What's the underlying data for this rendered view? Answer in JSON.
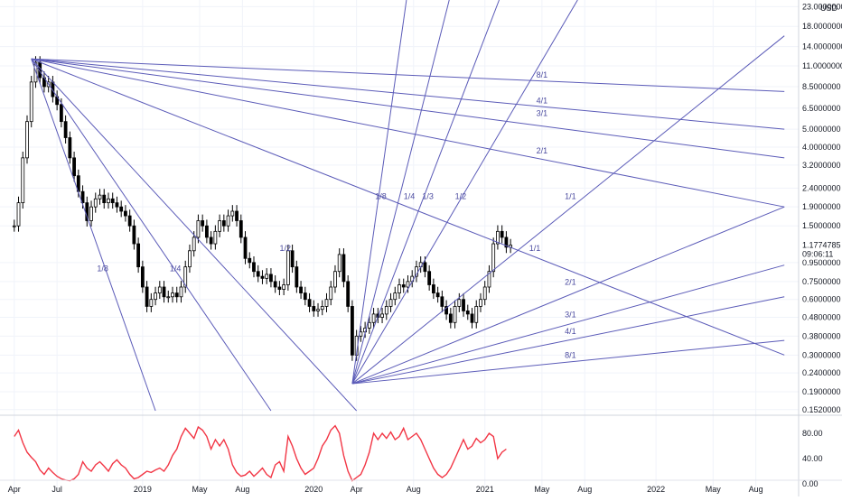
{
  "chart_data": {
    "type": "candlestick",
    "scale": "log",
    "currency": "USD",
    "y_ticks": [
      23.0,
      18.0,
      14.0,
      11.0,
      8.5,
      6.5,
      5.0,
      4.0,
      3.2,
      2.4,
      1.9,
      1.5,
      0.95,
      0.75,
      0.6,
      0.48,
      0.38,
      0.3,
      0.24,
      0.19,
      0.152
    ],
    "y_tick_labels": [
      "23.0000000",
      "18.0000000",
      "14.0000000",
      "11.0000000",
      "8.5000000",
      "6.5000000",
      "5.0000000",
      "4.0000000",
      "3.2000000",
      "2.4000000",
      "1.9000000",
      "1.5000000",
      "0.9500000",
      "0.7500000",
      "0.6000000",
      "0.4800000",
      "0.3800000",
      "0.3000000",
      "0.2400000",
      "0.1900000",
      "0.1520000"
    ],
    "ylim": [
      0.145,
      25.0
    ],
    "last_price": "1.1774785",
    "last_price_value": 1.1775,
    "countdown": "09:06:11",
    "x_tick_labels": [
      {
        "label": "Apr",
        "t": 0.0
      },
      {
        "label": "Jul",
        "t": 3.0
      },
      {
        "label": "2019",
        "t": 9.0
      },
      {
        "label": "May",
        "t": 13.0
      },
      {
        "label": "Aug",
        "t": 16.0
      },
      {
        "label": "2020",
        "t": 21.0
      },
      {
        "label": "Apr",
        "t": 24.0
      },
      {
        "label": "Aug",
        "t": 28.0
      },
      {
        "label": "2021",
        "t": 33.0
      },
      {
        "label": "May",
        "t": 37.0
      },
      {
        "label": "Aug",
        "t": 40.0
      },
      {
        "label": "2022",
        "t": 45.0
      },
      {
        "label": "May",
        "t": 49.0
      },
      {
        "label": "Aug",
        "t": 52.0
      }
    ],
    "x_range": [
      -1.0,
      55.0
    ],
    "price_series": [
      [
        0.0,
        1.5
      ],
      [
        0.3,
        2.0
      ],
      [
        0.6,
        3.5
      ],
      [
        0.9,
        5.5
      ],
      [
        1.2,
        9.0
      ],
      [
        1.5,
        11.5
      ],
      [
        1.8,
        9.5
      ],
      [
        2.1,
        8.5
      ],
      [
        2.4,
        9.0
      ],
      [
        2.7,
        7.5
      ],
      [
        3.0,
        6.8
      ],
      [
        3.3,
        5.5
      ],
      [
        3.6,
        4.5
      ],
      [
        3.9,
        3.5
      ],
      [
        4.2,
        2.8
      ],
      [
        4.5,
        2.3
      ],
      [
        4.8,
        2.0
      ],
      [
        5.1,
        1.6
      ],
      [
        5.4,
        1.9
      ],
      [
        5.7,
        2.1
      ],
      [
        6.0,
        2.2
      ],
      [
        6.3,
        2.0
      ],
      [
        6.6,
        2.1
      ],
      [
        6.9,
        2.0
      ],
      [
        7.2,
        1.9
      ],
      [
        7.5,
        1.8
      ],
      [
        7.8,
        1.7
      ],
      [
        8.1,
        1.5
      ],
      [
        8.4,
        1.2
      ],
      [
        8.7,
        0.9
      ],
      [
        9.0,
        0.7
      ],
      [
        9.3,
        0.55
      ],
      [
        9.6,
        0.6
      ],
      [
        9.9,
        0.65
      ],
      [
        10.2,
        0.7
      ],
      [
        10.5,
        0.62
      ],
      [
        10.8,
        0.62
      ],
      [
        11.1,
        0.65
      ],
      [
        11.4,
        0.62
      ],
      [
        11.7,
        0.7
      ],
      [
        12.0,
        0.9
      ],
      [
        12.3,
        1.1
      ],
      [
        12.6,
        1.3
      ],
      [
        12.9,
        1.6
      ],
      [
        13.2,
        1.5
      ],
      [
        13.5,
        1.3
      ],
      [
        13.8,
        1.2
      ],
      [
        14.1,
        1.4
      ],
      [
        14.4,
        1.6
      ],
      [
        14.7,
        1.5
      ],
      [
        15.0,
        1.7
      ],
      [
        15.3,
        1.8
      ],
      [
        15.6,
        1.6
      ],
      [
        15.9,
        1.3
      ],
      [
        16.2,
        1.0
      ],
      [
        16.5,
        0.95
      ],
      [
        16.8,
        0.85
      ],
      [
        17.1,
        0.8
      ],
      [
        17.4,
        0.78
      ],
      [
        17.7,
        0.82
      ],
      [
        18.0,
        0.75
      ],
      [
        18.3,
        0.7
      ],
      [
        18.6,
        0.68
      ],
      [
        18.9,
        0.72
      ],
      [
        19.2,
        1.1
      ],
      [
        19.5,
        0.9
      ],
      [
        19.8,
        0.7
      ],
      [
        20.1,
        0.65
      ],
      [
        20.4,
        0.6
      ],
      [
        20.7,
        0.55
      ],
      [
        21.0,
        0.52
      ],
      [
        21.3,
        0.53
      ],
      [
        21.6,
        0.55
      ],
      [
        21.9,
        0.6
      ],
      [
        22.2,
        0.7
      ],
      [
        22.5,
        0.85
      ],
      [
        22.8,
        1.05
      ],
      [
        23.1,
        0.75
      ],
      [
        23.4,
        0.55
      ],
      [
        23.7,
        0.3
      ],
      [
        24.0,
        0.38
      ],
      [
        24.3,
        0.4
      ],
      [
        24.6,
        0.42
      ],
      [
        24.9,
        0.45
      ],
      [
        25.2,
        0.5
      ],
      [
        25.5,
        0.48
      ],
      [
        25.8,
        0.5
      ],
      [
        26.1,
        0.55
      ],
      [
        26.4,
        0.6
      ],
      [
        26.7,
        0.65
      ],
      [
        27.0,
        0.72
      ],
      [
        27.3,
        0.7
      ],
      [
        27.6,
        0.75
      ],
      [
        27.9,
        0.8
      ],
      [
        28.2,
        0.9
      ],
      [
        28.5,
        0.95
      ],
      [
        28.8,
        0.85
      ],
      [
        29.1,
        0.72
      ],
      [
        29.4,
        0.65
      ],
      [
        29.7,
        0.62
      ],
      [
        30.0,
        0.55
      ],
      [
        30.3,
        0.5
      ],
      [
        30.6,
        0.45
      ],
      [
        30.9,
        0.55
      ],
      [
        31.2,
        0.6
      ],
      [
        31.5,
        0.52
      ],
      [
        31.8,
        0.5
      ],
      [
        32.1,
        0.45
      ],
      [
        32.4,
        0.55
      ],
      [
        32.7,
        0.6
      ],
      [
        33.0,
        0.7
      ],
      [
        33.3,
        0.85
      ],
      [
        33.6,
        1.2
      ],
      [
        33.9,
        1.4
      ],
      [
        34.2,
        1.3
      ],
      [
        34.5,
        1.15
      ],
      [
        34.8,
        1.18
      ]
    ],
    "oscillator": {
      "y_ticks": [
        80.0,
        40.0,
        0.0
      ],
      "y_tick_labels": [
        "80.00",
        "40.00",
        "0.00"
      ],
      "ylim": [
        0,
        100
      ],
      "color": "#f23645",
      "values": [
        [
          0.0,
          75
        ],
        [
          0.3,
          85
        ],
        [
          0.6,
          65
        ],
        [
          0.9,
          50
        ],
        [
          1.2,
          42
        ],
        [
          1.5,
          35
        ],
        [
          1.8,
          22
        ],
        [
          2.1,
          15
        ],
        [
          2.4,
          25
        ],
        [
          2.7,
          18
        ],
        [
          3.0,
          12
        ],
        [
          3.3,
          8
        ],
        [
          3.6,
          6
        ],
        [
          3.9,
          5
        ],
        [
          4.2,
          8
        ],
        [
          4.5,
          15
        ],
        [
          4.8,
          35
        ],
        [
          5.1,
          25
        ],
        [
          5.4,
          20
        ],
        [
          5.7,
          30
        ],
        [
          6.0,
          35
        ],
        [
          6.3,
          28
        ],
        [
          6.6,
          20
        ],
        [
          6.9,
          32
        ],
        [
          7.2,
          38
        ],
        [
          7.5,
          30
        ],
        [
          7.8,
          25
        ],
        [
          8.1,
          15
        ],
        [
          8.4,
          8
        ],
        [
          8.7,
          10
        ],
        [
          9.0,
          15
        ],
        [
          9.3,
          20
        ],
        [
          9.6,
          18
        ],
        [
          9.9,
          22
        ],
        [
          10.2,
          25
        ],
        [
          10.5,
          20
        ],
        [
          10.8,
          30
        ],
        [
          11.1,
          45
        ],
        [
          11.4,
          55
        ],
        [
          11.7,
          75
        ],
        [
          12.0,
          88
        ],
        [
          12.3,
          80
        ],
        [
          12.6,
          72
        ],
        [
          12.9,
          90
        ],
        [
          13.2,
          85
        ],
        [
          13.5,
          75
        ],
        [
          13.8,
          55
        ],
        [
          14.1,
          70
        ],
        [
          14.4,
          60
        ],
        [
          14.7,
          70
        ],
        [
          15.0,
          55
        ],
        [
          15.3,
          30
        ],
        [
          15.6,
          18
        ],
        [
          15.9,
          12
        ],
        [
          16.2,
          14
        ],
        [
          16.5,
          20
        ],
        [
          16.8,
          12
        ],
        [
          17.1,
          18
        ],
        [
          17.4,
          25
        ],
        [
          17.7,
          15
        ],
        [
          18.0,
          10
        ],
        [
          18.3,
          30
        ],
        [
          18.6,
          35
        ],
        [
          18.9,
          20
        ],
        [
          19.2,
          75
        ],
        [
          19.5,
          60
        ],
        [
          19.8,
          40
        ],
        [
          20.1,
          25
        ],
        [
          20.4,
          15
        ],
        [
          20.7,
          20
        ],
        [
          21.0,
          25
        ],
        [
          21.3,
          40
        ],
        [
          21.6,
          60
        ],
        [
          21.9,
          70
        ],
        [
          22.2,
          85
        ],
        [
          22.5,
          92
        ],
        [
          22.8,
          80
        ],
        [
          23.1,
          45
        ],
        [
          23.4,
          20
        ],
        [
          23.7,
          5
        ],
        [
          24.0,
          10
        ],
        [
          24.3,
          15
        ],
        [
          24.6,
          30
        ],
        [
          24.9,
          50
        ],
        [
          25.2,
          80
        ],
        [
          25.5,
          70
        ],
        [
          25.8,
          80
        ],
        [
          26.1,
          72
        ],
        [
          26.4,
          82
        ],
        [
          26.7,
          70
        ],
        [
          27.0,
          75
        ],
        [
          27.3,
          88
        ],
        [
          27.6,
          70
        ],
        [
          27.9,
          75
        ],
        [
          28.2,
          80
        ],
        [
          28.5,
          70
        ],
        [
          28.8,
          55
        ],
        [
          29.1,
          40
        ],
        [
          29.4,
          25
        ],
        [
          29.7,
          15
        ],
        [
          30.0,
          10
        ],
        [
          30.3,
          15
        ],
        [
          30.6,
          25
        ],
        [
          30.9,
          40
        ],
        [
          31.2,
          55
        ],
        [
          31.5,
          70
        ],
        [
          31.8,
          55
        ],
        [
          32.1,
          60
        ],
        [
          32.4,
          72
        ],
        [
          32.7,
          65
        ],
        [
          33.0,
          70
        ],
        [
          33.3,
          80
        ],
        [
          33.6,
          75
        ],
        [
          33.9,
          40
        ],
        [
          34.2,
          50
        ],
        [
          34.5,
          55
        ]
      ]
    },
    "gann_fans": [
      {
        "origin": [
          1.2,
          12.0
        ],
        "ratio_labels": [
          {
            "label": "1/8",
            "t": 6.2,
            "p": 0.85
          },
          {
            "label": "1/4",
            "t": 11.3,
            "p": 0.85
          },
          {
            "label": "1/2",
            "t": 19.0,
            "p": 1.1
          },
          {
            "label": "1/1",
            "t": 36.5,
            "p": 1.1
          },
          {
            "label": "2/1",
            "t": 37.0,
            "p": 3.7
          },
          {
            "label": "3/1",
            "t": 37.0,
            "p": 5.9
          },
          {
            "label": "4/1",
            "t": 37.0,
            "p": 6.9
          },
          {
            "label": "8/1",
            "t": 37.0,
            "p": 9.5
          }
        ],
        "lines": [
          {
            "end": [
              9.9,
              0.15
            ]
          },
          {
            "end": [
              18.0,
              0.15
            ]
          },
          {
            "end": [
              24.0,
              0.15
            ]
          },
          {
            "end": [
              54.0,
              0.3
            ]
          },
          {
            "end": [
              54.0,
              1.9
            ]
          },
          {
            "end": [
              54.0,
              3.5
            ]
          },
          {
            "end": [
              54.0,
              5.0
            ]
          },
          {
            "end": [
              54.0,
              8.0
            ]
          }
        ]
      },
      {
        "origin": [
          23.7,
          0.21
        ],
        "ratio_labels": [
          {
            "label": "1/8",
            "t": 25.7,
            "p": 2.1
          },
          {
            "label": "1/4",
            "t": 27.7,
            "p": 2.1
          },
          {
            "label": "1/3",
            "t": 29.0,
            "p": 2.1
          },
          {
            "label": "1/2",
            "t": 31.3,
            "p": 2.1
          },
          {
            "label": "1/1",
            "t": 39.0,
            "p": 2.1
          },
          {
            "label": "2/1",
            "t": 39.0,
            "p": 0.72
          },
          {
            "label": "3/1",
            "t": 39.0,
            "p": 0.48
          },
          {
            "label": "4/1",
            "t": 39.0,
            "p": 0.39
          },
          {
            "label": "8/1",
            "t": 39.0,
            "p": 0.29
          }
        ],
        "lines": [
          {
            "end": [
              27.5,
              25.0
            ]
          },
          {
            "end": [
              30.5,
              25.0
            ]
          },
          {
            "end": [
              34.0,
              25.0
            ]
          },
          {
            "end": [
              39.5,
              25.0
            ]
          },
          {
            "end": [
              54.0,
              16.0
            ]
          },
          {
            "end": [
              54.0,
              1.9
            ]
          },
          {
            "end": [
              54.0,
              0.92
            ]
          },
          {
            "end": [
              54.0,
              0.62
            ]
          },
          {
            "end": [
              54.0,
              0.36
            ]
          }
        ]
      }
    ]
  }
}
